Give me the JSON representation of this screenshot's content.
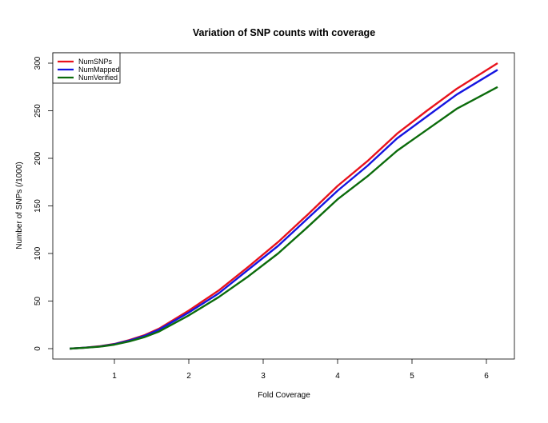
{
  "chart_data": {
    "type": "line",
    "title": "Variation of SNP counts with coverage",
    "xlabel": "Fold Coverage",
    "ylabel": "Number of SNPs (/1000)",
    "xlim": [
      0.2,
      6.5
    ],
    "ylim": [
      -11,
      311
    ],
    "xticks": [
      1,
      2,
      3,
      4,
      5,
      6
    ],
    "yticks": [
      0,
      50,
      100,
      150,
      200,
      250,
      300
    ],
    "grid": false,
    "legend_position": "top-left",
    "x": [
      0.4,
      0.6,
      0.8,
      1.0,
      1.2,
      1.4,
      1.6,
      2.0,
      2.4,
      2.8,
      3.2,
      3.6,
      4.0,
      4.4,
      4.8,
      5.2,
      5.6,
      6.15
    ],
    "series": [
      {
        "name": "NumSNPs",
        "color": "#e8121c",
        "values": [
          0,
          1,
          2.5,
          5,
          9,
          14,
          21,
          40,
          61,
          86,
          112,
          141,
          171,
          197,
          226,
          250,
          273,
          300
        ]
      },
      {
        "name": "NumMapped",
        "color": "#1515e0",
        "values": [
          0,
          1,
          2.3,
          4.7,
          8.5,
          13.3,
          20,
          38,
          58,
          83,
          108,
          137,
          166,
          192,
          221,
          244,
          267,
          293
        ]
      },
      {
        "name": "NumVerified",
        "color": "#0b6b0b",
        "values": [
          0,
          0.9,
          2,
          4.2,
          7.6,
          12,
          18,
          35,
          54,
          76,
          100,
          128,
          157,
          181,
          208,
          230,
          252,
          275
        ]
      }
    ]
  }
}
